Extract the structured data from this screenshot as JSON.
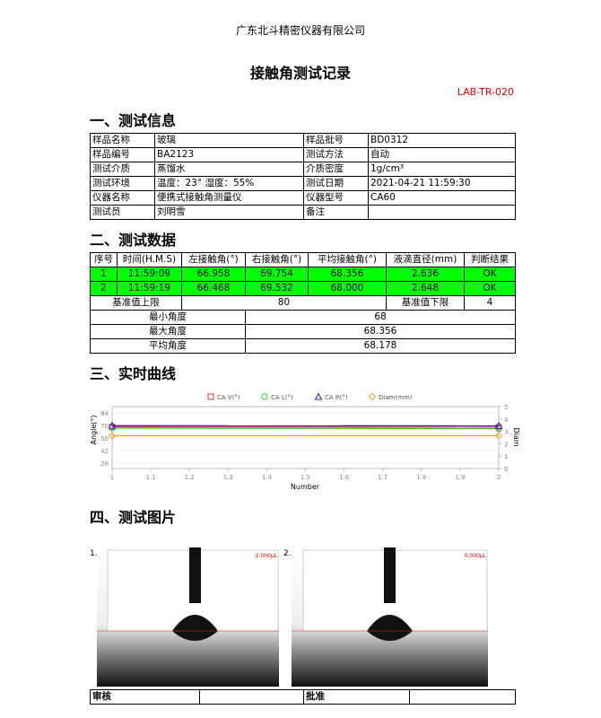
{
  "header": {
    "company": "广东北斗精密仪器有限公司",
    "title": "接触角测试记录",
    "code": "LAB-TR-020"
  },
  "sections": [
    "一、测试信息",
    "二、测试数据",
    "三、实时曲线",
    "四、测试图片"
  ],
  "info_table": {
    "rows": [
      [
        "样品名称",
        "玻璃",
        "样品批号",
        "BD0312"
      ],
      [
        "样品编号",
        "BA2123",
        "测试方法",
        "自动"
      ],
      [
        "测试介质",
        "蒸馏水",
        "介质密度",
        "1g/cm³"
      ],
      [
        "测试环境",
        "温度：23° 湿度：55%",
        "测试日期",
        "2021-04-21 11:59:30"
      ],
      [
        "仪器名称",
        "便携式接触角测量仪",
        "仪器型号",
        "CA60"
      ],
      [
        "测试员",
        "刘明雪",
        "备注"
      ]
    ]
  },
  "data_table": {
    "header": [
      "序号",
      "时间(H.M.S)",
      "左接触角(°)",
      "右接触角(°)",
      "平均接触角(°)",
      "液滴直径(mm)",
      "判断结果"
    ],
    "rows": [
      [
        "1",
        "11:59:09",
        "66.958",
        "69.754",
        "68.356",
        "2.636",
        "OK"
      ],
      [
        "2",
        "11:59:19",
        "66.468",
        "69.532",
        "68.000",
        "2.648",
        "OK"
      ]
    ],
    "limits": [
      "基准值上限",
      "80",
      "基准值下限",
      "4"
    ],
    "summary": [
      [
        "最小角度",
        "68"
      ],
      [
        "最大角度",
        "68.356"
      ],
      [
        "平均角度",
        "68.178"
      ]
    ]
  },
  "chart_data": {
    "type": "line",
    "x_label": "Number",
    "y_label": "Angle(°)",
    "y2_label": "Diam",
    "x": [
      1,
      2
    ],
    "xlim": [
      1,
      2
    ],
    "xticks": [
      1,
      1.1,
      1.2,
      1.3,
      1.4,
      1.5,
      1.6,
      1.7,
      1.8,
      1.9,
      2
    ],
    "ylim": [
      22,
      91
    ],
    "yticks": [
      28,
      42,
      56,
      70,
      84
    ],
    "y2lim": [
      0,
      5
    ],
    "y2ticks": [
      0,
      1,
      2,
      3,
      4,
      5
    ],
    "series": [
      {
        "name": "CA V(°)",
        "color": "#e03030",
        "marker": "square",
        "values": [
          68.356,
          68.0
        ]
      },
      {
        "name": "CA L(°)",
        "color": "#30d030",
        "marker": "circle",
        "values": [
          66.958,
          66.468
        ]
      },
      {
        "name": "CA R(°)",
        "color": "#2020c0",
        "marker": "triangle",
        "values": [
          69.754,
          69.532
        ]
      },
      {
        "name": "Diam(mm)",
        "color": "#f0a020",
        "marker": "diamond",
        "axis": "y2",
        "values": [
          2.636,
          2.648
        ]
      }
    ]
  },
  "images": [
    {
      "label": "1.",
      "volume": "2.000μL"
    },
    {
      "label": "2.",
      "volume": "0.000μL"
    }
  ],
  "signoff": [
    "审核",
    "批准"
  ]
}
